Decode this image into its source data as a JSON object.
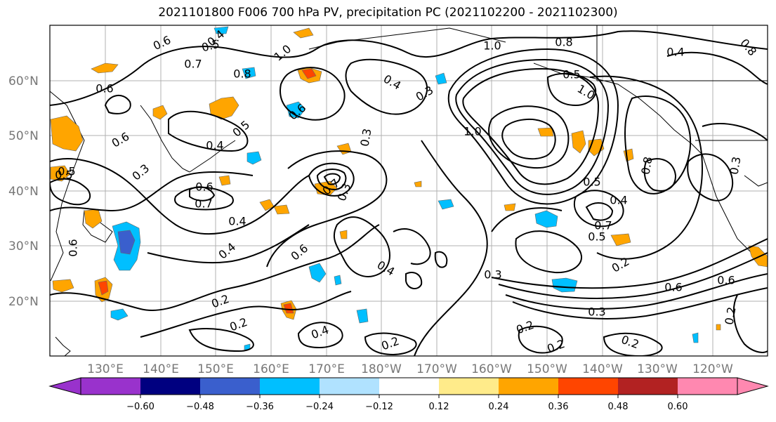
{
  "title": "2021101800 F006 700 hPa PV, precipitation PC (2021102200 - 2021102300)",
  "lat_labels": [
    "60°N",
    "50°N",
    "40°N",
    "30°N",
    "20°N"
  ],
  "lon_labels": [
    "130°E",
    "140°E",
    "150°E",
    "160°E",
    "170°E",
    "180°W",
    "170°W",
    "160°W",
    "150°W",
    "140°W",
    "130°W",
    "120°W"
  ],
  "contour_labels": [
    "0.6",
    "0.5",
    "0.4",
    "0.7",
    "0.8",
    "1.0",
    "0.4",
    "0.3",
    "1.0",
    "0.8",
    "0.5",
    "1.0",
    "0.4",
    "0.6",
    "0.6",
    "0.5",
    "0.4",
    "0.6",
    "0.3",
    "0.5",
    "0.3",
    "0.6",
    "0.7",
    "0.4",
    "0.4",
    "0.6",
    "0.7",
    "0.3",
    "1.0",
    "0.5",
    "0.4",
    "0.8",
    "0.7",
    "0.5",
    "0.4",
    "0.3",
    "0.6",
    "0.6",
    "0.2",
    "0.2",
    "0.4",
    "0.2",
    "0.2",
    "0.2",
    "0.2",
    "0.3",
    "0.2",
    "0.6",
    "0.5",
    "0.2",
    "0.8",
    "0.3"
  ],
  "colorbar": {
    "ticks": [
      "−0.60",
      "−0.48",
      "−0.36",
      "−0.24",
      "−0.12",
      "0.12",
      "0.24",
      "0.36",
      "0.48",
      "0.60"
    ],
    "colors": [
      "#9932cc",
      "#000080",
      "#3a5fcd",
      "#00bfff",
      "#b0e2ff",
      "#ffffff",
      "#ffeb8a",
      "#ffa500",
      "#ff4500",
      "#b22222",
      "#ff88b0"
    ]
  }
}
